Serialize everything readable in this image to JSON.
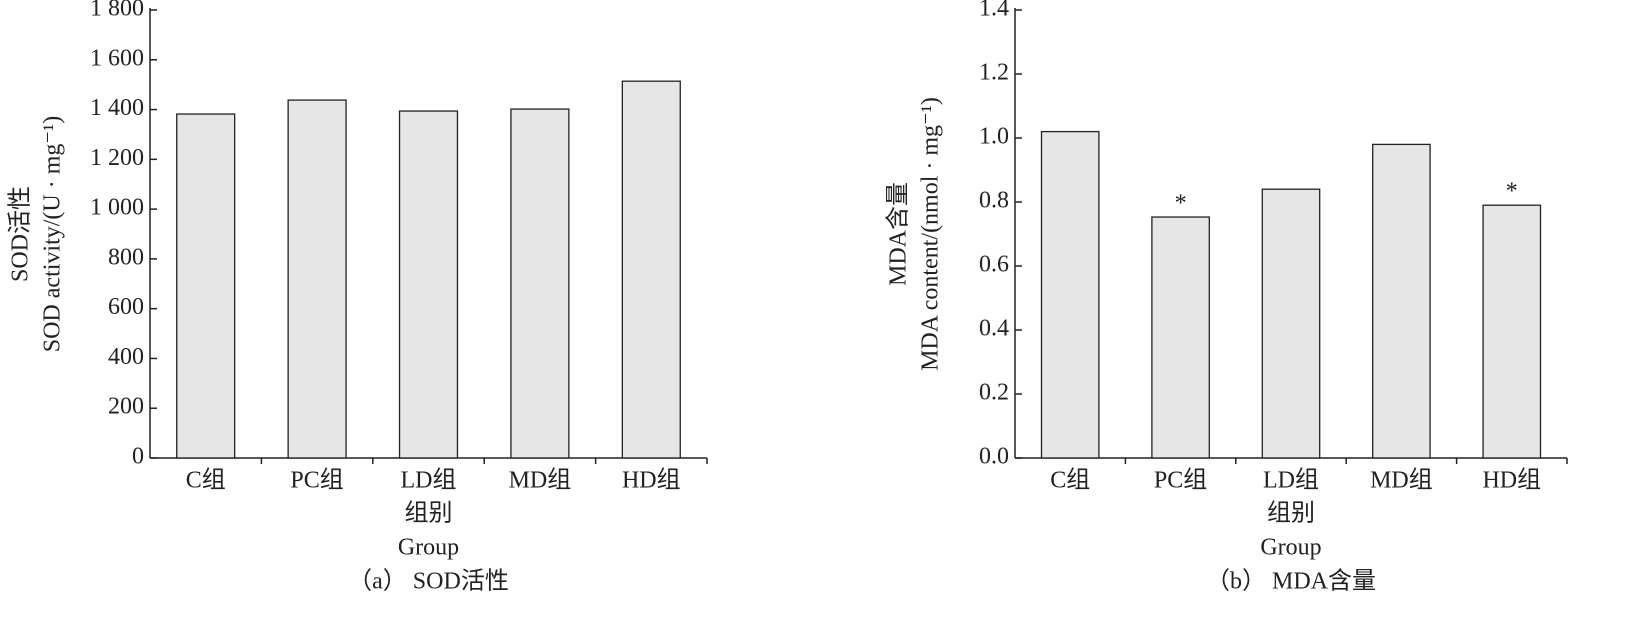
{
  "chart_data": [
    {
      "type": "bar",
      "categories": [
        "C组",
        "PC组",
        "LD组",
        "MD组",
        "HD组"
      ],
      "values": [
        1382,
        1438,
        1394,
        1402,
        1514
      ],
      "color": "#e6e6e6",
      "ylim": [
        0,
        1800
      ],
      "yticks": [
        0,
        200,
        400,
        600,
        800,
        {
          "value": 1000,
          "label": "1 000"
        },
        {
          "value": 1200,
          "label": "1 200"
        },
        {
          "value": 1400,
          "label": "1 400"
        },
        {
          "value": 1600,
          "label": "1 600"
        },
        {
          "value": 1800,
          "label": "1 800"
        }
      ],
      "ylabel": [
        "SOD活性",
        "SOD activity/(U · mg⁻¹)"
      ],
      "xlabel": [
        "组别",
        "Group"
      ],
      "caption": "（a） SOD活性"
    },
    {
      "type": "bar",
      "categories": [
        "C组",
        "PC组",
        "LD组",
        "MD组",
        "HD组"
      ],
      "values": [
        1.02,
        0.753,
        0.84,
        0.98,
        0.79
      ],
      "significance": [
        null,
        "*",
        null,
        null,
        "*"
      ],
      "color": "#e6e6e6",
      "ylim": [
        0,
        1.4
      ],
      "yticks": [
        {
          "value": 0,
          "label": "0.0"
        },
        0.2,
        0.4,
        0.6,
        0.8,
        {
          "value": 1,
          "label": "1.0"
        },
        1.2,
        1.4
      ],
      "ylabel": [
        "MDA含量",
        "MDA content/(nmol · mg⁻¹)"
      ],
      "xlabel": [
        "组别",
        "Group"
      ],
      "caption": "（b） MDA含量"
    }
  ]
}
